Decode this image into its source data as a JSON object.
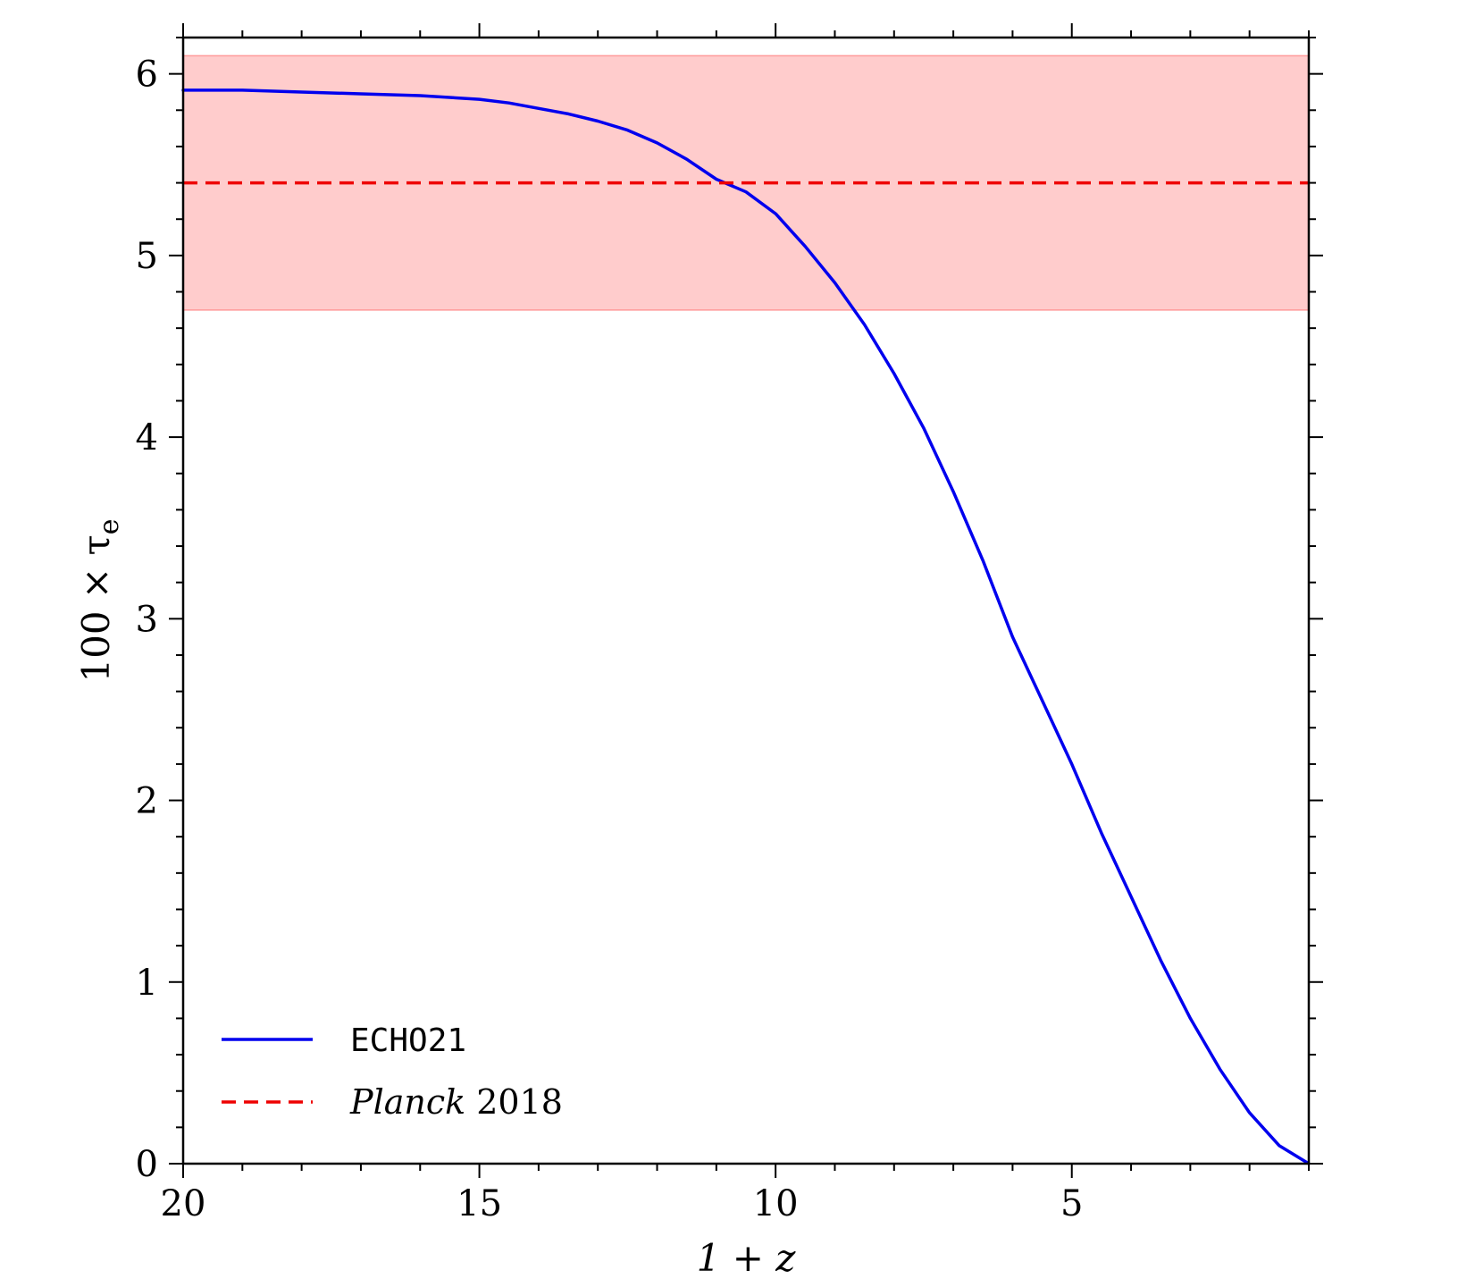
{
  "chart_data": {
    "type": "line",
    "xlabel": "1 + z",
    "ylabel": "100 × τ",
    "ylabel_subscript": "e",
    "xlim": [
      20,
      1
    ],
    "ylim": [
      0,
      6.2
    ],
    "x_reversed": true,
    "xticks": [
      20,
      15,
      10,
      5
    ],
    "yticks": [
      0,
      1,
      2,
      3,
      4,
      5,
      6
    ],
    "x_minor_step": 1,
    "y_minor_step": 0.2,
    "band": {
      "lower": 4.7,
      "upper": 6.1,
      "color": "#ffcccc"
    },
    "series": [
      {
        "name": "ECHO21",
        "color": "#0000ee",
        "style": "solid",
        "x": [
          20,
          19,
          18,
          17,
          16,
          15,
          14.5,
          14,
          13.5,
          13,
          12.5,
          12,
          11.5,
          11,
          10.5,
          10,
          9.5,
          9,
          8.5,
          8,
          7.5,
          7,
          6.5,
          6,
          5.5,
          5,
          4.5,
          4,
          3.5,
          3,
          2.5,
          2,
          1.5,
          1
        ],
        "y": [
          5.91,
          5.91,
          5.9,
          5.89,
          5.88,
          5.86,
          5.84,
          5.81,
          5.78,
          5.74,
          5.69,
          5.62,
          5.53,
          5.42,
          5.35,
          5.23,
          5.05,
          4.85,
          4.62,
          4.35,
          4.05,
          3.7,
          3.32,
          2.9,
          2.55,
          2.2,
          1.82,
          1.47,
          1.12,
          0.8,
          0.52,
          0.28,
          0.1,
          0.0
        ]
      },
      {
        "name": "Planck 2018",
        "name_italic": "Planck",
        "name_rest": " 2018",
        "color": "#ee0000",
        "style": "dashed",
        "constant": 5.4
      }
    ],
    "legend_position": "lower-left",
    "grid": false
  }
}
